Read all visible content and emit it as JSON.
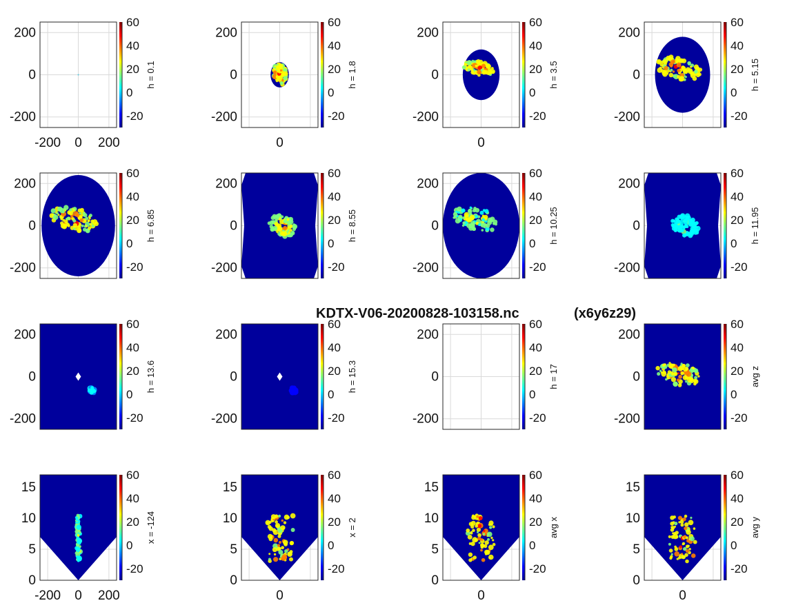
{
  "figure": {
    "title": "KDTX-V06-20200828-103158.nc",
    "title_suffix": "(x6y6z29)"
  },
  "colors": {
    "background": "#00009c",
    "colormap": [
      "#00008f",
      "#0000ff",
      "#0080ff",
      "#00ffff",
      "#80ff80",
      "#ffff00",
      "#ff8000",
      "#ff0000",
      "#800000"
    ],
    "grid": "#d9d9d9"
  },
  "chart_data": [
    {
      "type": "heatmap",
      "label": "h = 0.1",
      "footprint": "dot",
      "xlim": [
        -250,
        250
      ],
      "ylim": [
        -250,
        250
      ],
      "xticks": [
        "-200",
        "0",
        "200"
      ],
      "yticks": [
        "-200",
        "0",
        "200"
      ],
      "clim": [
        -30,
        60
      ],
      "cticks": [
        "-20",
        "0",
        "20",
        "40",
        "60"
      ]
    },
    {
      "type": "heatmap",
      "label": "h = 1.8",
      "footprint": "ellipse",
      "extent_km": 60,
      "xlim": [
        -250,
        250
      ],
      "ylim": [
        -250,
        250
      ],
      "xticks": [
        "0"
      ],
      "yticks": [
        "-200",
        "0",
        "200"
      ],
      "clim": [
        -30,
        60
      ],
      "cticks": [
        "-20",
        "0",
        "20",
        "40",
        "60"
      ],
      "echo_max_dbz": 55
    },
    {
      "type": "heatmap",
      "label": "h = 3.5",
      "footprint": "ellipse",
      "extent_km": 120,
      "xlim": [
        -250,
        250
      ],
      "ylim": [
        -250,
        250
      ],
      "xticks": [
        "0"
      ],
      "yticks": [
        "-200",
        "0",
        "200"
      ],
      "clim": [
        -30,
        60
      ],
      "cticks": [
        "-20",
        "0",
        "20",
        "40",
        "60"
      ],
      "echo_max_dbz": 55
    },
    {
      "type": "heatmap",
      "label": "h = 5.15",
      "footprint": "ellipse",
      "extent_km": 180,
      "xlim": [
        -250,
        250
      ],
      "ylim": [
        -250,
        250
      ],
      "xticks": [],
      "yticks": [
        "-200",
        "0",
        "200"
      ],
      "clim": [
        -30,
        60
      ],
      "cticks": [
        "-20",
        "0",
        "20",
        "40",
        "60"
      ],
      "echo_max_dbz": 55
    },
    {
      "type": "heatmap",
      "label": "h = 6.85",
      "footprint": "ellipse",
      "extent_km": 240,
      "xlim": [
        -250,
        250
      ],
      "ylim": [
        -250,
        250
      ],
      "xticks": [],
      "yticks": [
        "-200",
        "0",
        "200"
      ],
      "clim": [
        -30,
        60
      ],
      "cticks": [
        "-20",
        "0",
        "20",
        "40",
        "60"
      ],
      "echo_max_dbz": 55
    },
    {
      "type": "heatmap",
      "label": "h = 8.55",
      "footprint": "full-notched",
      "extent_km": 250,
      "xlim": [
        -250,
        250
      ],
      "ylim": [
        -250,
        250
      ],
      "xticks": [],
      "yticks": [
        "-200",
        "0",
        "200"
      ],
      "clim": [
        -30,
        60
      ],
      "cticks": [
        "-20",
        "0",
        "20",
        "40",
        "60"
      ],
      "echo_max_dbz": 45
    },
    {
      "type": "heatmap",
      "label": "h = 10.25",
      "footprint": "ellipse",
      "extent_km": 250,
      "xlim": [
        -250,
        250
      ],
      "ylim": [
        -250,
        250
      ],
      "xticks": [],
      "yticks": [
        "-200",
        "0",
        "200"
      ],
      "clim": [
        -30,
        60
      ],
      "cticks": [
        "-20",
        "0",
        "20",
        "40",
        "60"
      ],
      "echo_max_dbz": 35
    },
    {
      "type": "heatmap",
      "label": "h = 11.95",
      "footprint": "full-notched",
      "extent_km": 250,
      "xlim": [
        -250,
        250
      ],
      "ylim": [
        -250,
        250
      ],
      "xticks": [],
      "yticks": [
        "-200",
        "0",
        "200"
      ],
      "clim": [
        -30,
        60
      ],
      "cticks": [
        "-20",
        "0",
        "20",
        "40",
        "60"
      ],
      "echo_max_dbz": 20
    },
    {
      "type": "heatmap",
      "label": "h = 13.6",
      "footprint": "full-hole",
      "extent_km": 250,
      "xlim": [
        -250,
        250
      ],
      "ylim": [
        -250,
        250
      ],
      "xticks": [],
      "yticks": [
        "-200",
        "0",
        "200"
      ],
      "clim": [
        -30,
        60
      ],
      "cticks": [
        "-20",
        "0",
        "20",
        "40",
        "60"
      ],
      "echo_max_dbz": 10
    },
    {
      "type": "heatmap",
      "label": "h = 15.3",
      "footprint": "full-hole",
      "extent_km": 250,
      "xlim": [
        -250,
        250
      ],
      "ylim": [
        -250,
        250
      ],
      "xticks": [],
      "yticks": [
        "-200",
        "0",
        "200"
      ],
      "clim": [
        -30,
        60
      ],
      "cticks": [
        "-20",
        "0",
        "20",
        "40",
        "60"
      ],
      "echo_max_dbz": -25
    },
    {
      "type": "heatmap",
      "label": "h = 17",
      "footprint": "none",
      "xlim": [
        -250,
        250
      ],
      "ylim": [
        -250,
        250
      ],
      "xticks": [],
      "yticks": [
        "-200",
        "0",
        "200"
      ],
      "clim": [
        -30,
        60
      ],
      "cticks": [
        "-20",
        "0",
        "20",
        "40",
        "60"
      ]
    },
    {
      "type": "heatmap",
      "label": "avg z",
      "footprint": "rect",
      "xlim": [
        -250,
        250
      ],
      "ylim": [
        -250,
        250
      ],
      "xticks": [],
      "yticks": [
        "-200",
        "0",
        "200"
      ],
      "clim": [
        -30,
        60
      ],
      "cticks": [
        "-20",
        "0",
        "20",
        "40",
        "60"
      ],
      "echo_max_dbz": 55
    },
    {
      "type": "heatmap",
      "label": "x = -124",
      "footprint": "vslice",
      "xlim": [
        -250,
        250
      ],
      "ylim": [
        0,
        17
      ],
      "xticks": [
        "-200",
        "0",
        "200"
      ],
      "yticks": [
        "0",
        "5",
        "10",
        "15"
      ],
      "clim": [
        -30,
        60
      ],
      "cticks": [
        "-20",
        "0",
        "20",
        "40",
        "60"
      ],
      "echo_max_dbz": 30
    },
    {
      "type": "heatmap",
      "label": "x = 2",
      "footprint": "vslice-core",
      "xlim": [
        -250,
        250
      ],
      "ylim": [
        0,
        17
      ],
      "xticks": [
        "0"
      ],
      "yticks": [
        "0",
        "5",
        "10",
        "15"
      ],
      "clim": [
        -30,
        60
      ],
      "cticks": [
        "-20",
        "0",
        "20",
        "40",
        "60"
      ],
      "echo_max_dbz": 60
    },
    {
      "type": "heatmap",
      "label": "avg x",
      "footprint": "vslice-avg",
      "xlim": [
        -250,
        250
      ],
      "ylim": [
        0,
        17
      ],
      "xticks": [
        "0"
      ],
      "yticks": [
        "0",
        "5",
        "10",
        "15"
      ],
      "clim": [
        -30,
        60
      ],
      "cticks": [
        "-20",
        "0",
        "20",
        "40",
        "60"
      ],
      "echo_max_dbz": 60
    },
    {
      "type": "heatmap",
      "label": "avg y",
      "footprint": "vslice-avg",
      "xlim": [
        -250,
        250
      ],
      "ylim": [
        0,
        17
      ],
      "xticks": [
        "0"
      ],
      "yticks": [
        "0",
        "5",
        "10",
        "15"
      ],
      "clim": [
        -30,
        60
      ],
      "cticks": [
        "-20",
        "0",
        "20",
        "40",
        "60"
      ],
      "echo_max_dbz": 60
    }
  ]
}
